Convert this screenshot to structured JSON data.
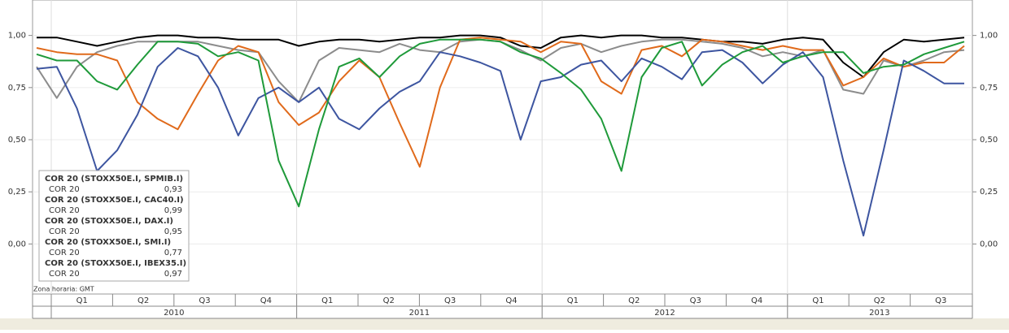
{
  "chart_data": {
    "type": "line",
    "ylim": [
      -0.24,
      1.17
    ],
    "yticks": [
      {
        "value": 0,
        "label": "0,00"
      },
      {
        "value": 0.25,
        "label": "0,25"
      },
      {
        "value": 0.5,
        "label": "0,50"
      },
      {
        "value": 0.75,
        "label": "0,75"
      },
      {
        "value": 1,
        "label": "1,00"
      }
    ],
    "timezone_note": "Zona horaria: GMT",
    "quarters": [
      "Q1",
      "Q2",
      "Q3",
      "Q4",
      "Q1",
      "Q2",
      "Q3",
      "Q4",
      "Q1",
      "Q2",
      "Q3",
      "Q4",
      "Q1",
      "Q2",
      "Q3"
    ],
    "years": [
      "2010",
      "2011",
      "2012",
      "2013"
    ],
    "series": [
      {
        "name": "COR 20 (STOXX50E.I, SPMIB.I)",
        "sub": "COR 20",
        "color": "#8c8c8c",
        "legend_value": 0.93,
        "legend_value_label": "0,93",
        "values": [
          0.85,
          0.7,
          0.85,
          0.92,
          0.95,
          0.97,
          0.97,
          0.97,
          0.97,
          0.95,
          0.93,
          0.92,
          0.78,
          0.68,
          0.88,
          0.94,
          0.93,
          0.92,
          0.96,
          0.93,
          0.92,
          0.97,
          0.98,
          0.97,
          0.93,
          0.88,
          0.94,
          0.96,
          0.92,
          0.95,
          0.97,
          0.98,
          0.98,
          0.97,
          0.96,
          0.94,
          0.9,
          0.92,
          0.9,
          0.93,
          0.74,
          0.72,
          0.88,
          0.85,
          0.88,
          0.92,
          0.93
        ]
      },
      {
        "name": "COR 20 (STOXX50E.I, CAC40.I)",
        "sub": "COR 20",
        "color": "#000000",
        "legend_value": 0.99,
        "legend_value_label": "0,99",
        "values": [
          0.99,
          0.99,
          0.97,
          0.95,
          0.97,
          0.99,
          1.0,
          1.0,
          0.99,
          0.99,
          0.98,
          0.98,
          0.98,
          0.95,
          0.97,
          0.98,
          0.98,
          0.97,
          0.98,
          0.99,
          0.99,
          1.0,
          1.0,
          0.99,
          0.95,
          0.94,
          0.99,
          1.0,
          0.99,
          1.0,
          1.0,
          0.99,
          0.99,
          0.98,
          0.97,
          0.97,
          0.96,
          0.98,
          0.99,
          0.98,
          0.87,
          0.8,
          0.92,
          0.98,
          0.97,
          0.98,
          0.99
        ]
      },
      {
        "name": "COR 20 (STOXX50E.I, DAX.I)",
        "sub": "COR 20",
        "color": "#e06a1b",
        "legend_value": 0.95,
        "legend_value_label": "0,95",
        "values": [
          0.94,
          0.92,
          0.91,
          0.91,
          0.88,
          0.68,
          0.6,
          0.55,
          0.72,
          0.88,
          0.95,
          0.92,
          0.68,
          0.57,
          0.63,
          0.78,
          0.88,
          0.8,
          0.58,
          0.37,
          0.75,
          0.98,
          0.99,
          0.98,
          0.97,
          0.92,
          0.97,
          0.96,
          0.78,
          0.72,
          0.93,
          0.95,
          0.9,
          0.98,
          0.97,
          0.95,
          0.93,
          0.95,
          0.93,
          0.93,
          0.76,
          0.8,
          0.89,
          0.85,
          0.87,
          0.87,
          0.95
        ]
      },
      {
        "name": "COR 20 (STOXX50E.I, SMI.I)",
        "sub": "COR 20",
        "color": "#3d55a0",
        "legend_value": 0.77,
        "legend_value_label": "0,77",
        "values": [
          0.84,
          0.85,
          0.65,
          0.35,
          0.45,
          0.62,
          0.85,
          0.94,
          0.9,
          0.75,
          0.52,
          0.7,
          0.75,
          0.68,
          0.75,
          0.6,
          0.55,
          0.65,
          0.73,
          0.78,
          0.92,
          0.9,
          0.87,
          0.83,
          0.5,
          0.78,
          0.8,
          0.86,
          0.88,
          0.78,
          0.89,
          0.85,
          0.79,
          0.92,
          0.93,
          0.87,
          0.77,
          0.86,
          0.92,
          0.8,
          0.4,
          0.04,
          0.45,
          0.88,
          0.83,
          0.77,
          0.77
        ]
      },
      {
        "name": "COR 20 (STOXX50E.I, IBEX35.I)",
        "sub": "COR 20",
        "color": "#1f9a3a",
        "legend_value": 0.97,
        "legend_value_label": "0,97",
        "values": [
          0.91,
          0.88,
          0.88,
          0.78,
          0.74,
          0.86,
          0.97,
          0.97,
          0.96,
          0.9,
          0.92,
          0.88,
          0.4,
          0.18,
          0.55,
          0.85,
          0.89,
          0.8,
          0.9,
          0.96,
          0.98,
          0.98,
          0.98,
          0.97,
          0.92,
          0.89,
          0.82,
          0.74,
          0.6,
          0.35,
          0.8,
          0.94,
          0.97,
          0.76,
          0.86,
          0.92,
          0.95,
          0.87,
          0.9,
          0.92,
          0.92,
          0.82,
          0.85,
          0.86,
          0.91,
          0.94,
          0.97
        ]
      }
    ]
  }
}
